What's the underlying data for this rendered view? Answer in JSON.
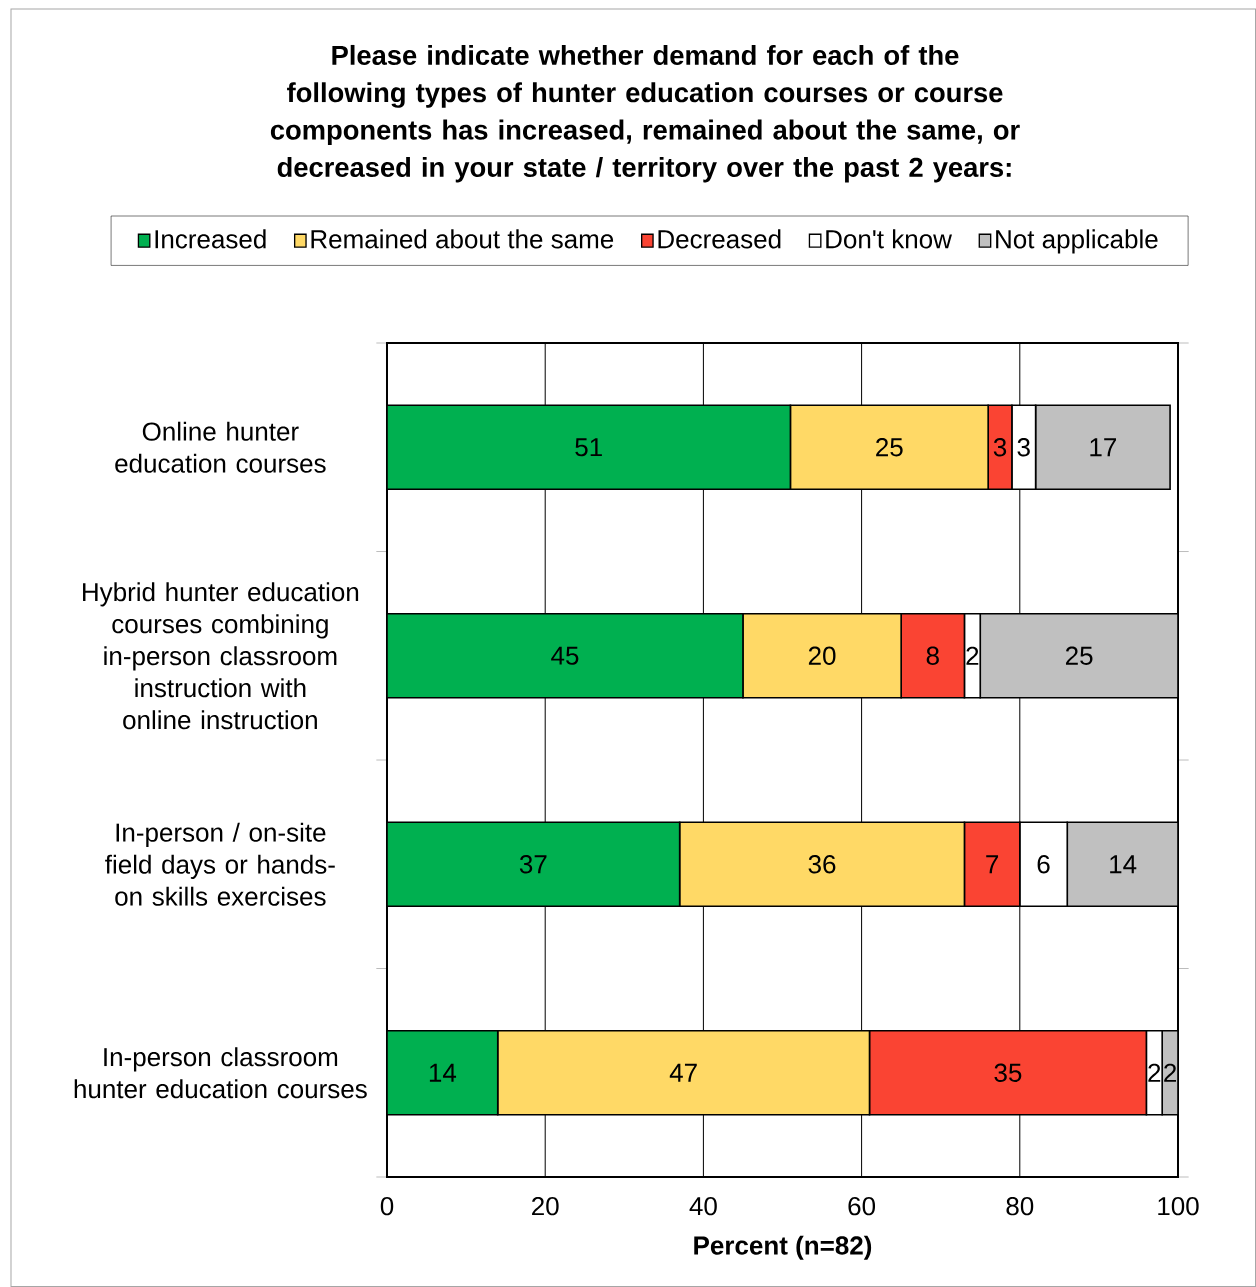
{
  "chart_data": {
    "type": "bar",
    "orientation": "horizontal",
    "stacked": true,
    "data_labels": true,
    "title": "Please indicate whether demand for each of the following types of hunter education courses or course components has increased, remained about the same, or decreased in your state / territory over the past 2 years:",
    "xlabel": "Percent (n=82)",
    "categories": [
      "Online hunter education courses",
      "Hybrid hunter education courses combining in-person classroom instruction with online instruction",
      "In-person / on-site field days or hands-on skills exercises",
      "In-person classroom hunter education courses"
    ],
    "series": [
      {
        "name": "Increased",
        "color": "#00b050",
        "values": [
          51,
          45,
          37,
          14
        ]
      },
      {
        "name": "Remained about the same",
        "color": "#ffd966",
        "values": [
          25,
          20,
          36,
          47
        ]
      },
      {
        "name": "Decreased",
        "color": "#fa4433",
        "values": [
          3,
          8,
          7,
          35
        ]
      },
      {
        "name": "Don't know",
        "color": "#ffffff",
        "values": [
          3,
          2,
          6,
          2
        ]
      },
      {
        "name": "Not applicable",
        "color": "#c0c0c0",
        "values": [
          17,
          25,
          14,
          2
        ]
      }
    ],
    "xlim": [
      0,
      100
    ],
    "xticks": [
      0,
      20,
      40,
      60,
      80,
      100
    ],
    "grid": "x",
    "legend": "top"
  }
}
